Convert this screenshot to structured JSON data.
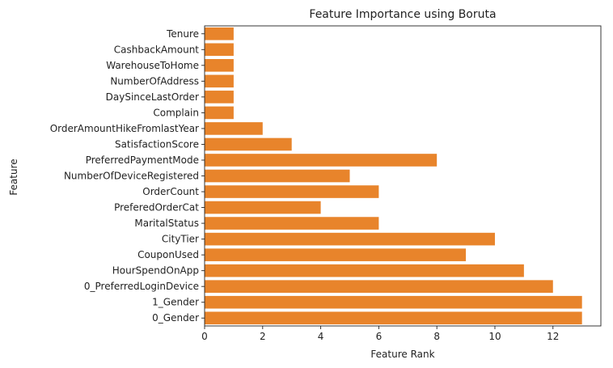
{
  "chart_data": {
    "type": "bar",
    "orientation": "horizontal",
    "title": "Feature Importance using Boruta",
    "xlabel": "Feature Rank",
    "ylabel": "Feature",
    "xlim": [
      0,
      13.65
    ],
    "xticks": [
      0,
      2,
      4,
      6,
      8,
      10,
      12
    ],
    "grid": false,
    "bar_color": "#e8842b",
    "categories": [
      "Tenure",
      "CashbackAmount",
      "WarehouseToHome",
      "NumberOfAddress",
      "DaySinceLastOrder",
      "Complain",
      "OrderAmountHikeFromlastYear",
      "SatisfactionScore",
      "PreferredPaymentMode",
      "NumberOfDeviceRegistered",
      "OrderCount",
      "PreferedOrderCat",
      "MaritalStatus",
      "CityTier",
      "CouponUsed",
      "HourSpendOnApp",
      "0_PreferredLoginDevice",
      "1_Gender",
      "0_Gender"
    ],
    "values": [
      1,
      1,
      1,
      1,
      1,
      1,
      2,
      3,
      8,
      5,
      6,
      4,
      6,
      10,
      9,
      11,
      12,
      13,
      13
    ]
  }
}
